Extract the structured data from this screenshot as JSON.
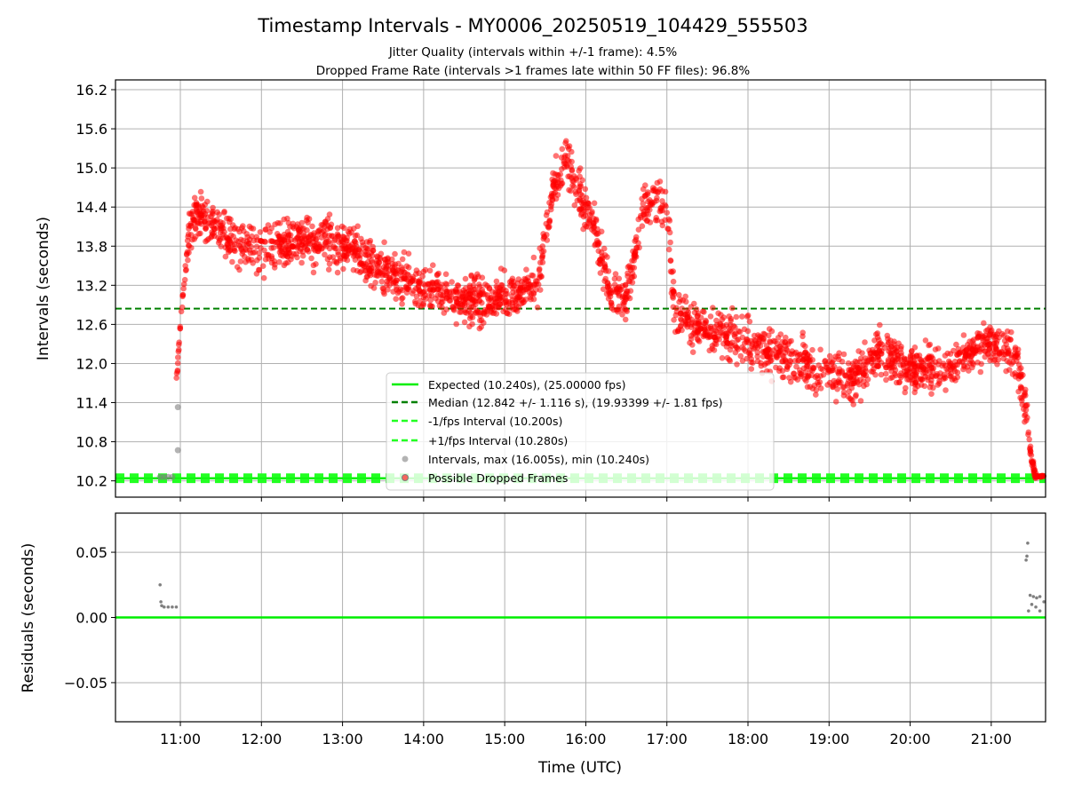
{
  "figure": {
    "title": "Timestamp Intervals - MY0006_20250519_104429_555503",
    "subtitle_line1": "Jitter Quality (intervals within +/-1 frame): 4.5%",
    "subtitle_line2": "Dropped Frame Rate (intervals >1 frames late within 50 FF files): 96.8%"
  },
  "colors": {
    "expected": "#00ee00",
    "median": "#008000",
    "fps_band": "#22ff22",
    "intervals": "#808080",
    "dropped": "#ff0000",
    "grid": "#b0b0b0"
  },
  "chart_data": [
    {
      "type": "scatter",
      "title": "Timestamp Intervals - MY0006_20250519_104429_555503",
      "xlabel": "",
      "ylabel": "Intervals (seconds)",
      "x_unit": "hours UTC",
      "xlim": [
        10.2,
        21.67
      ],
      "ylim": [
        9.95,
        16.35
      ],
      "xticks": [
        "11:00",
        "12:00",
        "13:00",
        "14:00",
        "15:00",
        "16:00",
        "17:00",
        "18:00",
        "19:00",
        "20:00",
        "21:00"
      ],
      "yticks": [
        "10.2",
        "10.8",
        "11.4",
        "12.0",
        "12.6",
        "13.2",
        "13.8",
        "14.4",
        "15.0",
        "15.6",
        "16.2"
      ],
      "grid": true,
      "legend_position": "lower-center",
      "reference_lines": [
        {
          "name": "Expected (10.240s), (25.00000 fps)",
          "y": 10.24,
          "style": "solid",
          "color": "#00ee00"
        },
        {
          "name": "Median (12.842 +/- 1.116 s), (19.93399 +/- 1.81 fps)",
          "y": 12.842,
          "style": "dashed",
          "color": "#008000"
        },
        {
          "name": "-1/fps Interval (10.200s)",
          "y": 10.2,
          "style": "dashed",
          "color": "#22ff22"
        },
        {
          "name": "+1/fps Interval (10.280s)",
          "y": 10.28,
          "style": "dashed",
          "color": "#22ff22"
        }
      ],
      "series": [
        {
          "name": "Intervals, max (16.005s), min (10.240s)",
          "color": "#808080",
          "points": [
            [
              10.75,
              10.26
            ],
            [
              10.8,
              10.26
            ],
            [
              10.85,
              10.26
            ],
            [
              10.9,
              10.26
            ],
            [
              10.97,
              11.33
            ],
            [
              10.97,
              10.67
            ]
          ]
        },
        {
          "name": "Possible Dropped Frames",
          "color": "#ff0000",
          "trend": [
            [
              10.95,
              11.7
            ],
            [
              11.0,
              12.6
            ],
            [
              11.05,
              13.3
            ],
            [
              11.1,
              13.9
            ],
            [
              11.2,
              14.3
            ],
            [
              11.4,
              14.2
            ],
            [
              11.6,
              13.9
            ],
            [
              12.0,
              13.75
            ],
            [
              12.5,
              13.9
            ],
            [
              13.0,
              13.8
            ],
            [
              13.5,
              13.45
            ],
            [
              14.0,
              13.2
            ],
            [
              14.5,
              12.95
            ],
            [
              15.0,
              13.05
            ],
            [
              15.4,
              13.2
            ],
            [
              15.6,
              14.7
            ],
            [
              15.75,
              15.2
            ],
            [
              15.95,
              14.5
            ],
            [
              16.1,
              14.1
            ],
            [
              16.3,
              13.1
            ],
            [
              16.5,
              13.0
            ],
            [
              16.7,
              14.4
            ],
            [
              16.9,
              14.5
            ],
            [
              17.0,
              14.4
            ],
            [
              17.1,
              12.8
            ],
            [
              17.5,
              12.5
            ],
            [
              18.0,
              12.3
            ],
            [
              18.5,
              12.05
            ],
            [
              19.0,
              11.85
            ],
            [
              19.3,
              11.75
            ],
            [
              19.6,
              12.15
            ],
            [
              20.0,
              11.9
            ],
            [
              20.5,
              11.95
            ],
            [
              21.0,
              12.35
            ],
            [
              21.3,
              12.1
            ],
            [
              21.42,
              11.3
            ],
            [
              21.5,
              10.5
            ],
            [
              21.55,
              10.26
            ],
            [
              21.65,
              10.26
            ]
          ],
          "spread_seconds": 0.35
        }
      ]
    },
    {
      "type": "scatter",
      "title": "",
      "xlabel": "Time (UTC)",
      "ylabel": "Residuals (seconds)",
      "xlim": [
        10.2,
        21.67
      ],
      "ylim": [
        -0.08,
        0.08
      ],
      "yticks": [
        "0.05",
        "0.00",
        "−0.05"
      ],
      "grid": true,
      "reference_lines": [
        {
          "name": "zero",
          "y": 0.0,
          "style": "solid",
          "color": "#00ee00"
        }
      ],
      "series": [
        {
          "name": "Residuals",
          "color": "#808080",
          "points": [
            [
              10.75,
              0.025
            ],
            [
              10.76,
              0.012
            ],
            [
              10.77,
              0.009
            ],
            [
              10.8,
              0.008
            ],
            [
              10.85,
              0.008
            ],
            [
              10.9,
              0.008
            ],
            [
              10.95,
              0.008
            ],
            [
              21.45,
              0.057
            ],
            [
              21.44,
              0.047
            ],
            [
              21.43,
              0.044
            ],
            [
              21.48,
              0.017
            ],
            [
              21.52,
              0.016
            ],
            [
              21.56,
              0.015
            ],
            [
              21.6,
              0.016
            ],
            [
              21.5,
              0.01
            ],
            [
              21.55,
              0.008
            ],
            [
              21.6,
              0.005
            ],
            [
              21.46,
              0.005
            ],
            [
              21.65,
              0.012
            ]
          ]
        }
      ]
    }
  ]
}
